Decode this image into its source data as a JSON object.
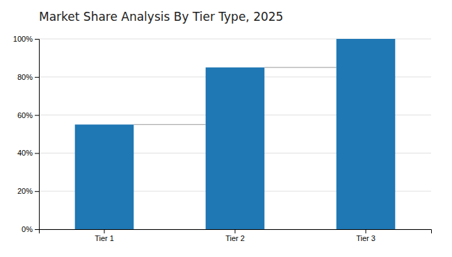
{
  "chart_data": {
    "type": "bar",
    "title": "Market Share Analysis By Tier Type, 2025",
    "categories": [
      "Tier 1",
      "Tier 2",
      "Tier 3"
    ],
    "values": [
      55,
      85,
      100
    ],
    "color": "#1F77B4",
    "ylim": [
      0,
      100
    ],
    "yticks": [
      {
        "value": 0,
        "label": "0%"
      },
      {
        "value": 20,
        "label": "20%"
      },
      {
        "value": 40,
        "label": "40%"
      },
      {
        "value": 60,
        "label": "60%"
      },
      {
        "value": 80,
        "label": "80%"
      },
      {
        "value": 100,
        "label": "100%"
      }
    ],
    "grid": true
  }
}
